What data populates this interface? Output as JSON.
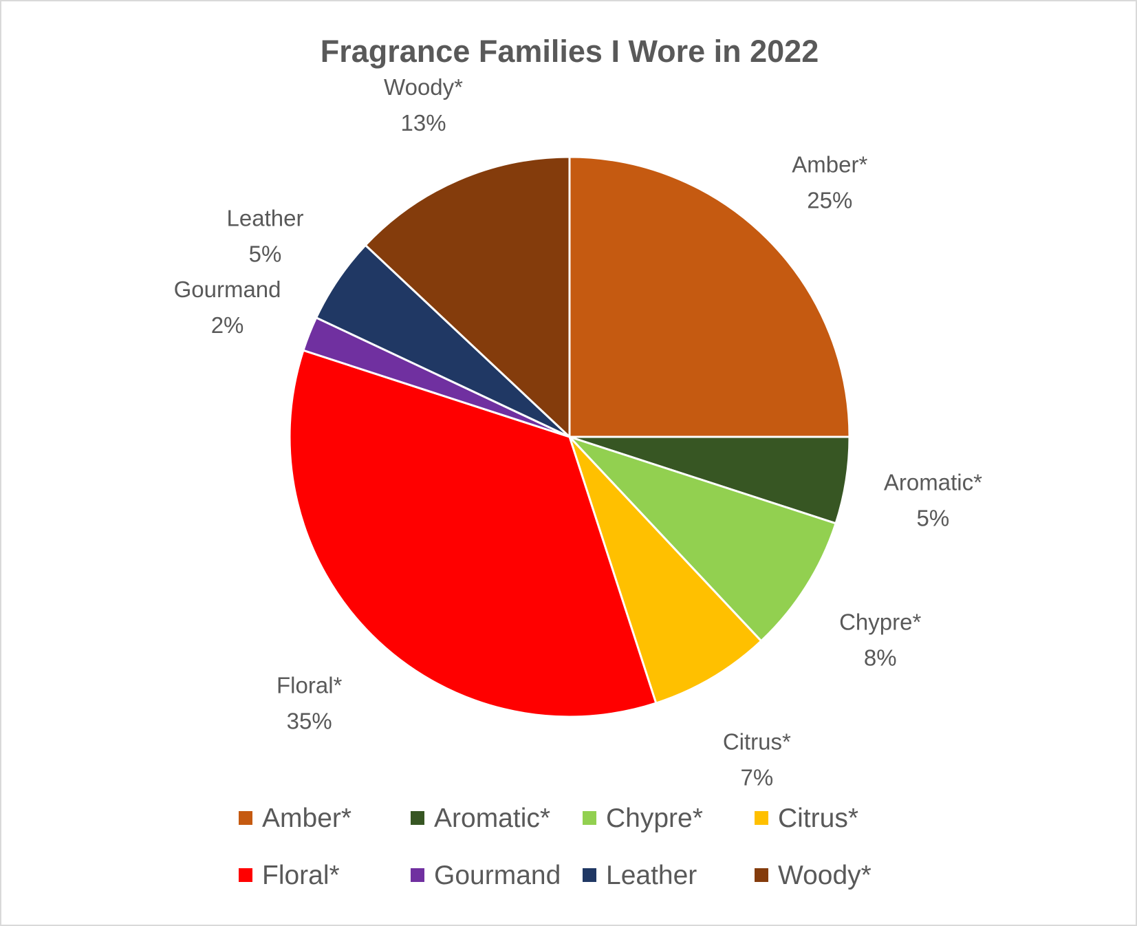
{
  "chart_data": {
    "type": "pie",
    "title": "Fragrance Families I Wore in 2022",
    "legend_position": "bottom",
    "slices": [
      {
        "name": "Amber*",
        "value": 25,
        "label": "25%",
        "color": "#C55A11"
      },
      {
        "name": "Aromatic*",
        "value": 5,
        "label": "5%",
        "color": "#375623"
      },
      {
        "name": "Chypre*",
        "value": 8,
        "label": "8%",
        "color": "#92D050"
      },
      {
        "name": "Citrus*",
        "value": 7,
        "label": "7%",
        "color": "#FFC000"
      },
      {
        "name": "Floral*",
        "value": 35,
        "label": "35%",
        "color": "#FF0000"
      },
      {
        "name": "Gourmand",
        "value": 2,
        "label": "2%",
        "color": "#7030A0"
      },
      {
        "name": "Leather",
        "value": 5,
        "label": "5%",
        "color": "#203864"
      },
      {
        "name": "Woody*",
        "value": 13,
        "label": "13%",
        "color": "#843C0C"
      }
    ]
  }
}
